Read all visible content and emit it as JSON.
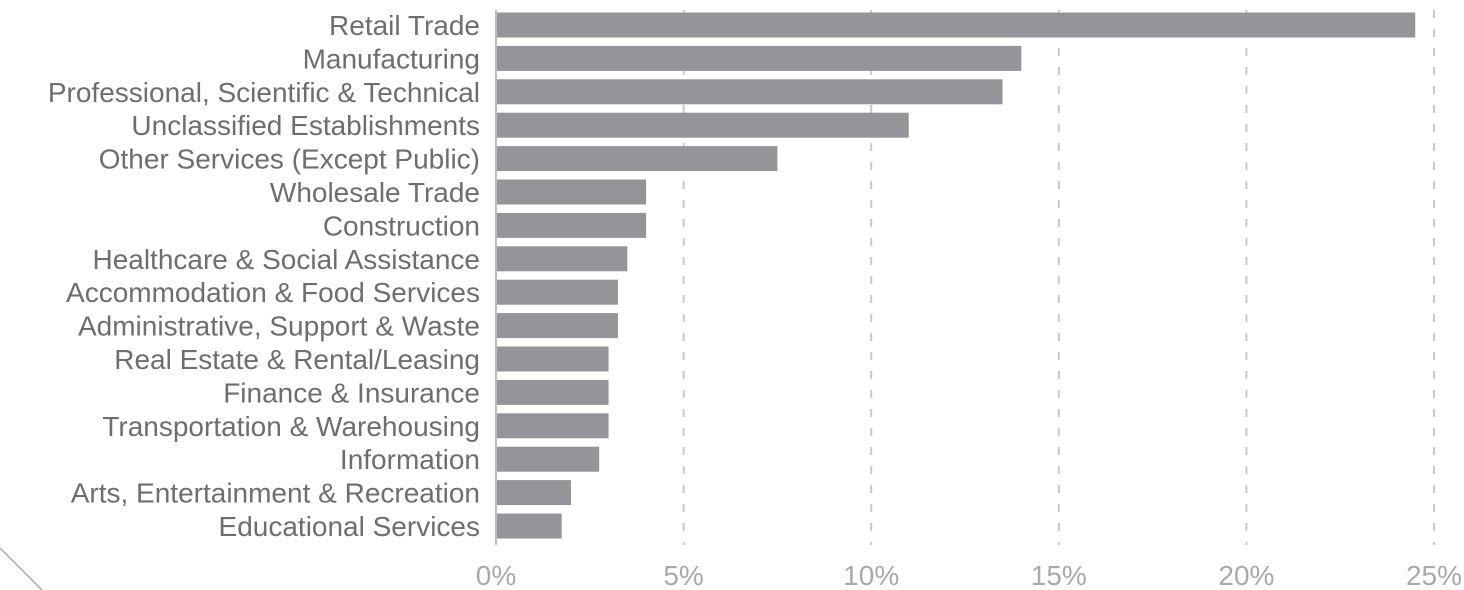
{
  "chart_data": {
    "type": "bar",
    "orientation": "horizontal",
    "categories": [
      "Retail Trade",
      "Manufacturing",
      "Professional, Scientific & Technical",
      "Unclassified Establishments",
      "Other Services (Except Public)",
      "Wholesale Trade",
      "Construction",
      "Healthcare & Social Assistance",
      "Accommodation & Food Services",
      "Administrative, Support & Waste",
      "Real Estate & Rental/Leasing",
      "Finance & Insurance",
      "Transportation & Warehousing",
      "Information",
      "Arts, Entertainment & Recreation",
      "Educational Services"
    ],
    "values": [
      24.5,
      14.0,
      13.5,
      11.0,
      7.5,
      4.0,
      4.0,
      3.5,
      3.25,
      3.25,
      3.0,
      3.0,
      3.0,
      2.75,
      2.0,
      1.75
    ],
    "xlim": [
      0,
      25
    ],
    "xticks": [
      "0%",
      "5%",
      "10%",
      "15%",
      "20%",
      "25%"
    ],
    "title": "",
    "xlabel": "",
    "ylabel": "",
    "grid": "vertical dashed",
    "legend": "none",
    "colors": {
      "bar": "#939598",
      "label": "#6d6e71",
      "tick": "#a7a9ac",
      "grid": "#c9c9cb"
    }
  }
}
